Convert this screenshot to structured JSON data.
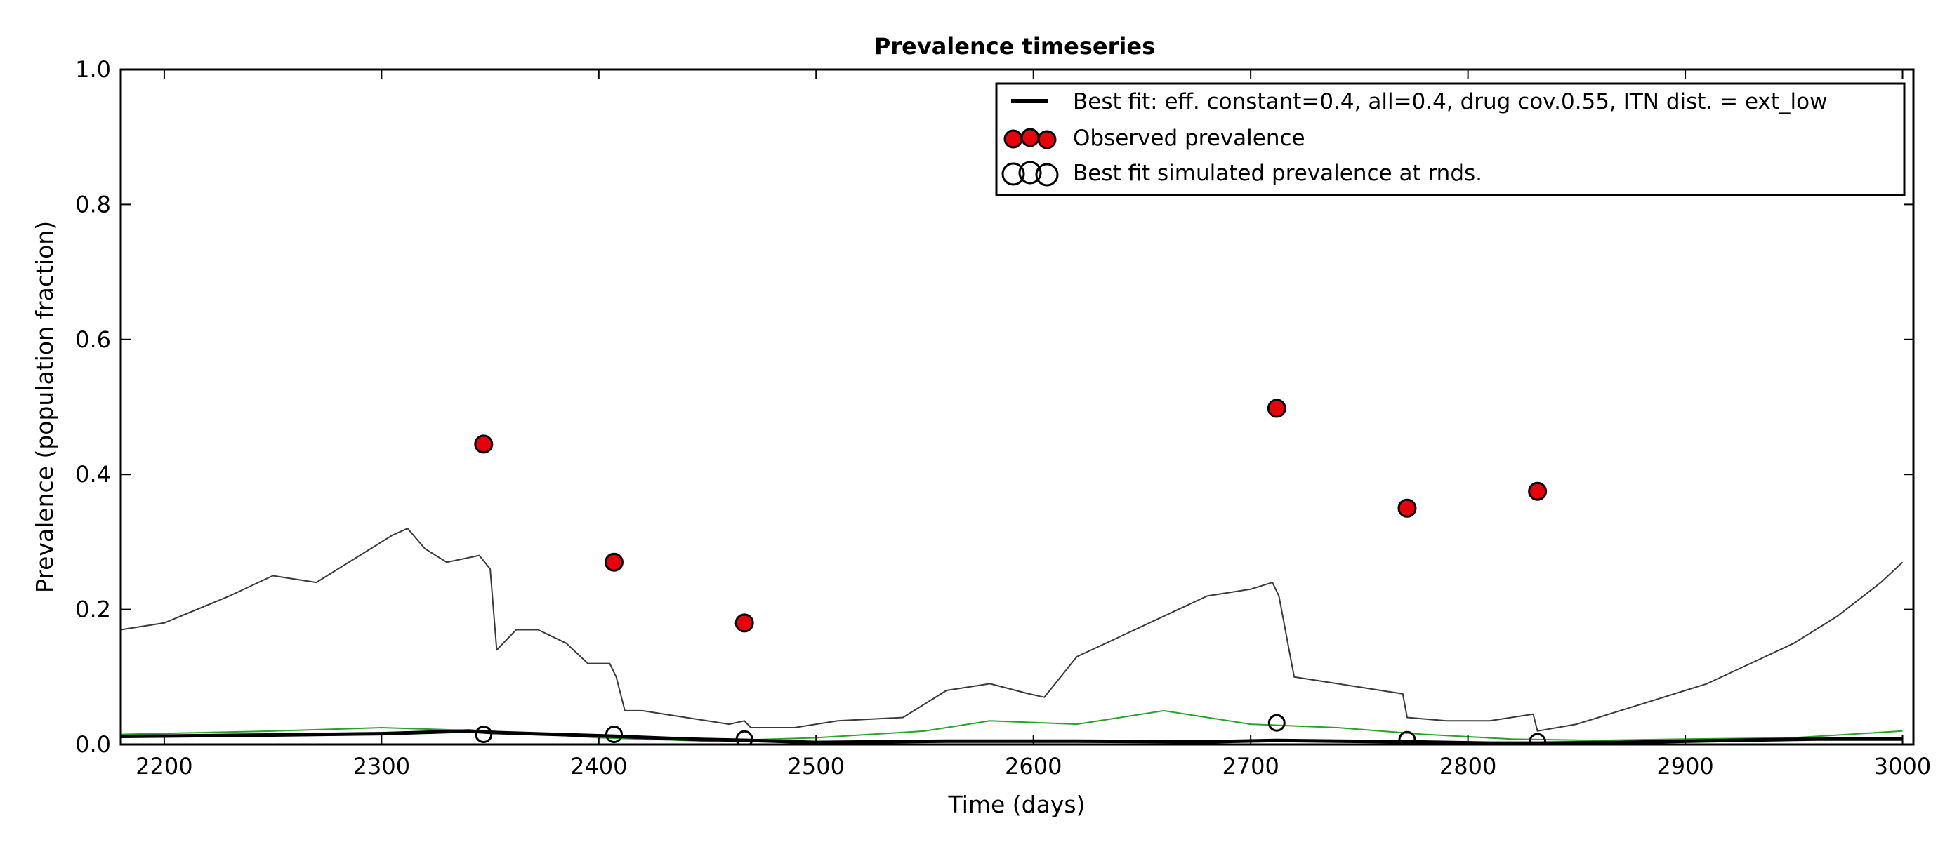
{
  "chart_data": {
    "type": "line",
    "title": "Prevalence timeseries",
    "xlabel": "Time (days)",
    "ylabel": "Prevalence (population fraction)",
    "xlim": [
      2180,
      3005
    ],
    "ylim": [
      0.0,
      1.0
    ],
    "x_ticks": [
      2200,
      2300,
      2400,
      2500,
      2600,
      2700,
      2800,
      2900,
      3000
    ],
    "y_ticks": [
      "0.0",
      "0.2",
      "0.4",
      "0.6",
      "0.8",
      "1.0"
    ],
    "x_tick_labels": [
      "2200",
      "2300",
      "2400",
      "2500",
      "2600",
      "2700",
      "2800",
      "2900",
      "3000"
    ],
    "grid": false,
    "legend_position": "top-right",
    "legend": [
      {
        "label": "Best fit: eff. constant=0.4, all=0.4, drug cov.0.55, ITN dist. = ext_low",
        "marker": "line"
      },
      {
        "label": "Observed prevalence",
        "marker": "filled-circle"
      },
      {
        "label": "Best fit simulated prevalence at rnds.",
        "marker": "open-circle"
      }
    ],
    "colors": {
      "best_fit": "#000000",
      "observed": "#e8000b",
      "gray_series": "#3a3a3a",
      "green_series": "#2ca02c"
    },
    "series": [
      {
        "role": "gray-trace",
        "x": [
          2180,
          2200,
          2230,
          2250,
          2270,
          2290,
          2305,
          2312,
          2320,
          2330,
          2345,
          2350,
          2353,
          2362,
          2372,
          2385,
          2395,
          2405,
          2408,
          2412,
          2420,
          2440,
          2460,
          2467,
          2470,
          2490,
          2510,
          2540,
          2560,
          2580,
          2598,
          2605,
          2620,
          2640,
          2660,
          2680,
          2700,
          2710,
          2713,
          2720,
          2740,
          2760,
          2770,
          2772,
          2790,
          2810,
          2830,
          2832,
          2850,
          2870,
          2890,
          2910,
          2930,
          2950,
          2970,
          2990,
          3000
        ],
        "y": [
          0.17,
          0.18,
          0.22,
          0.25,
          0.24,
          0.28,
          0.31,
          0.32,
          0.29,
          0.27,
          0.28,
          0.26,
          0.14,
          0.17,
          0.17,
          0.15,
          0.12,
          0.12,
          0.1,
          0.05,
          0.05,
          0.04,
          0.03,
          0.035,
          0.025,
          0.025,
          0.035,
          0.04,
          0.08,
          0.09,
          0.075,
          0.07,
          0.13,
          0.16,
          0.19,
          0.22,
          0.23,
          0.24,
          0.22,
          0.1,
          0.09,
          0.08,
          0.075,
          0.04,
          0.035,
          0.035,
          0.045,
          0.02,
          0.03,
          0.05,
          0.07,
          0.09,
          0.12,
          0.15,
          0.19,
          0.24,
          0.27
        ]
      },
      {
        "role": "green-trace",
        "x": [
          2180,
          2250,
          2300,
          2350,
          2400,
          2450,
          2500,
          2550,
          2580,
          2620,
          2660,
          2700,
          2740,
          2780,
          2820,
          2860,
          2900,
          2950,
          3000
        ],
        "y": [
          0.015,
          0.02,
          0.025,
          0.02,
          0.01,
          0.005,
          0.01,
          0.02,
          0.035,
          0.03,
          0.05,
          0.03,
          0.025,
          0.015,
          0.008,
          0.006,
          0.008,
          0.01,
          0.02
        ]
      },
      {
        "role": "best-fit",
        "name": "Best fit: eff. constant=0.4, all=0.4, drug cov.0.55, ITN dist. = ext_low",
        "x": [
          2180,
          2250,
          2300,
          2340,
          2350,
          2380,
          2410,
          2440,
          2470,
          2500,
          2560,
          2620,
          2680,
          2712,
          2740,
          2772,
          2810,
          2832,
          2870,
          2920,
          2960,
          3000
        ],
        "y": [
          0.012,
          0.014,
          0.016,
          0.02,
          0.018,
          0.015,
          0.012,
          0.008,
          0.006,
          0.003,
          0.005,
          0.005,
          0.004,
          0.006,
          0.005,
          0.004,
          0.002,
          0.002,
          0.003,
          0.006,
          0.008,
          0.008
        ]
      }
    ],
    "observed_prevalence": {
      "x": [
        2347,
        2407,
        2467,
        2712,
        2772,
        2832
      ],
      "y": [
        0.445,
        0.27,
        0.18,
        0.498,
        0.35,
        0.375
      ]
    },
    "simulated_at_rounds": {
      "x": [
        2347,
        2407,
        2467,
        2712,
        2772,
        2832
      ],
      "y": [
        0.015,
        0.015,
        0.008,
        0.032,
        0.007,
        0.004
      ]
    }
  }
}
